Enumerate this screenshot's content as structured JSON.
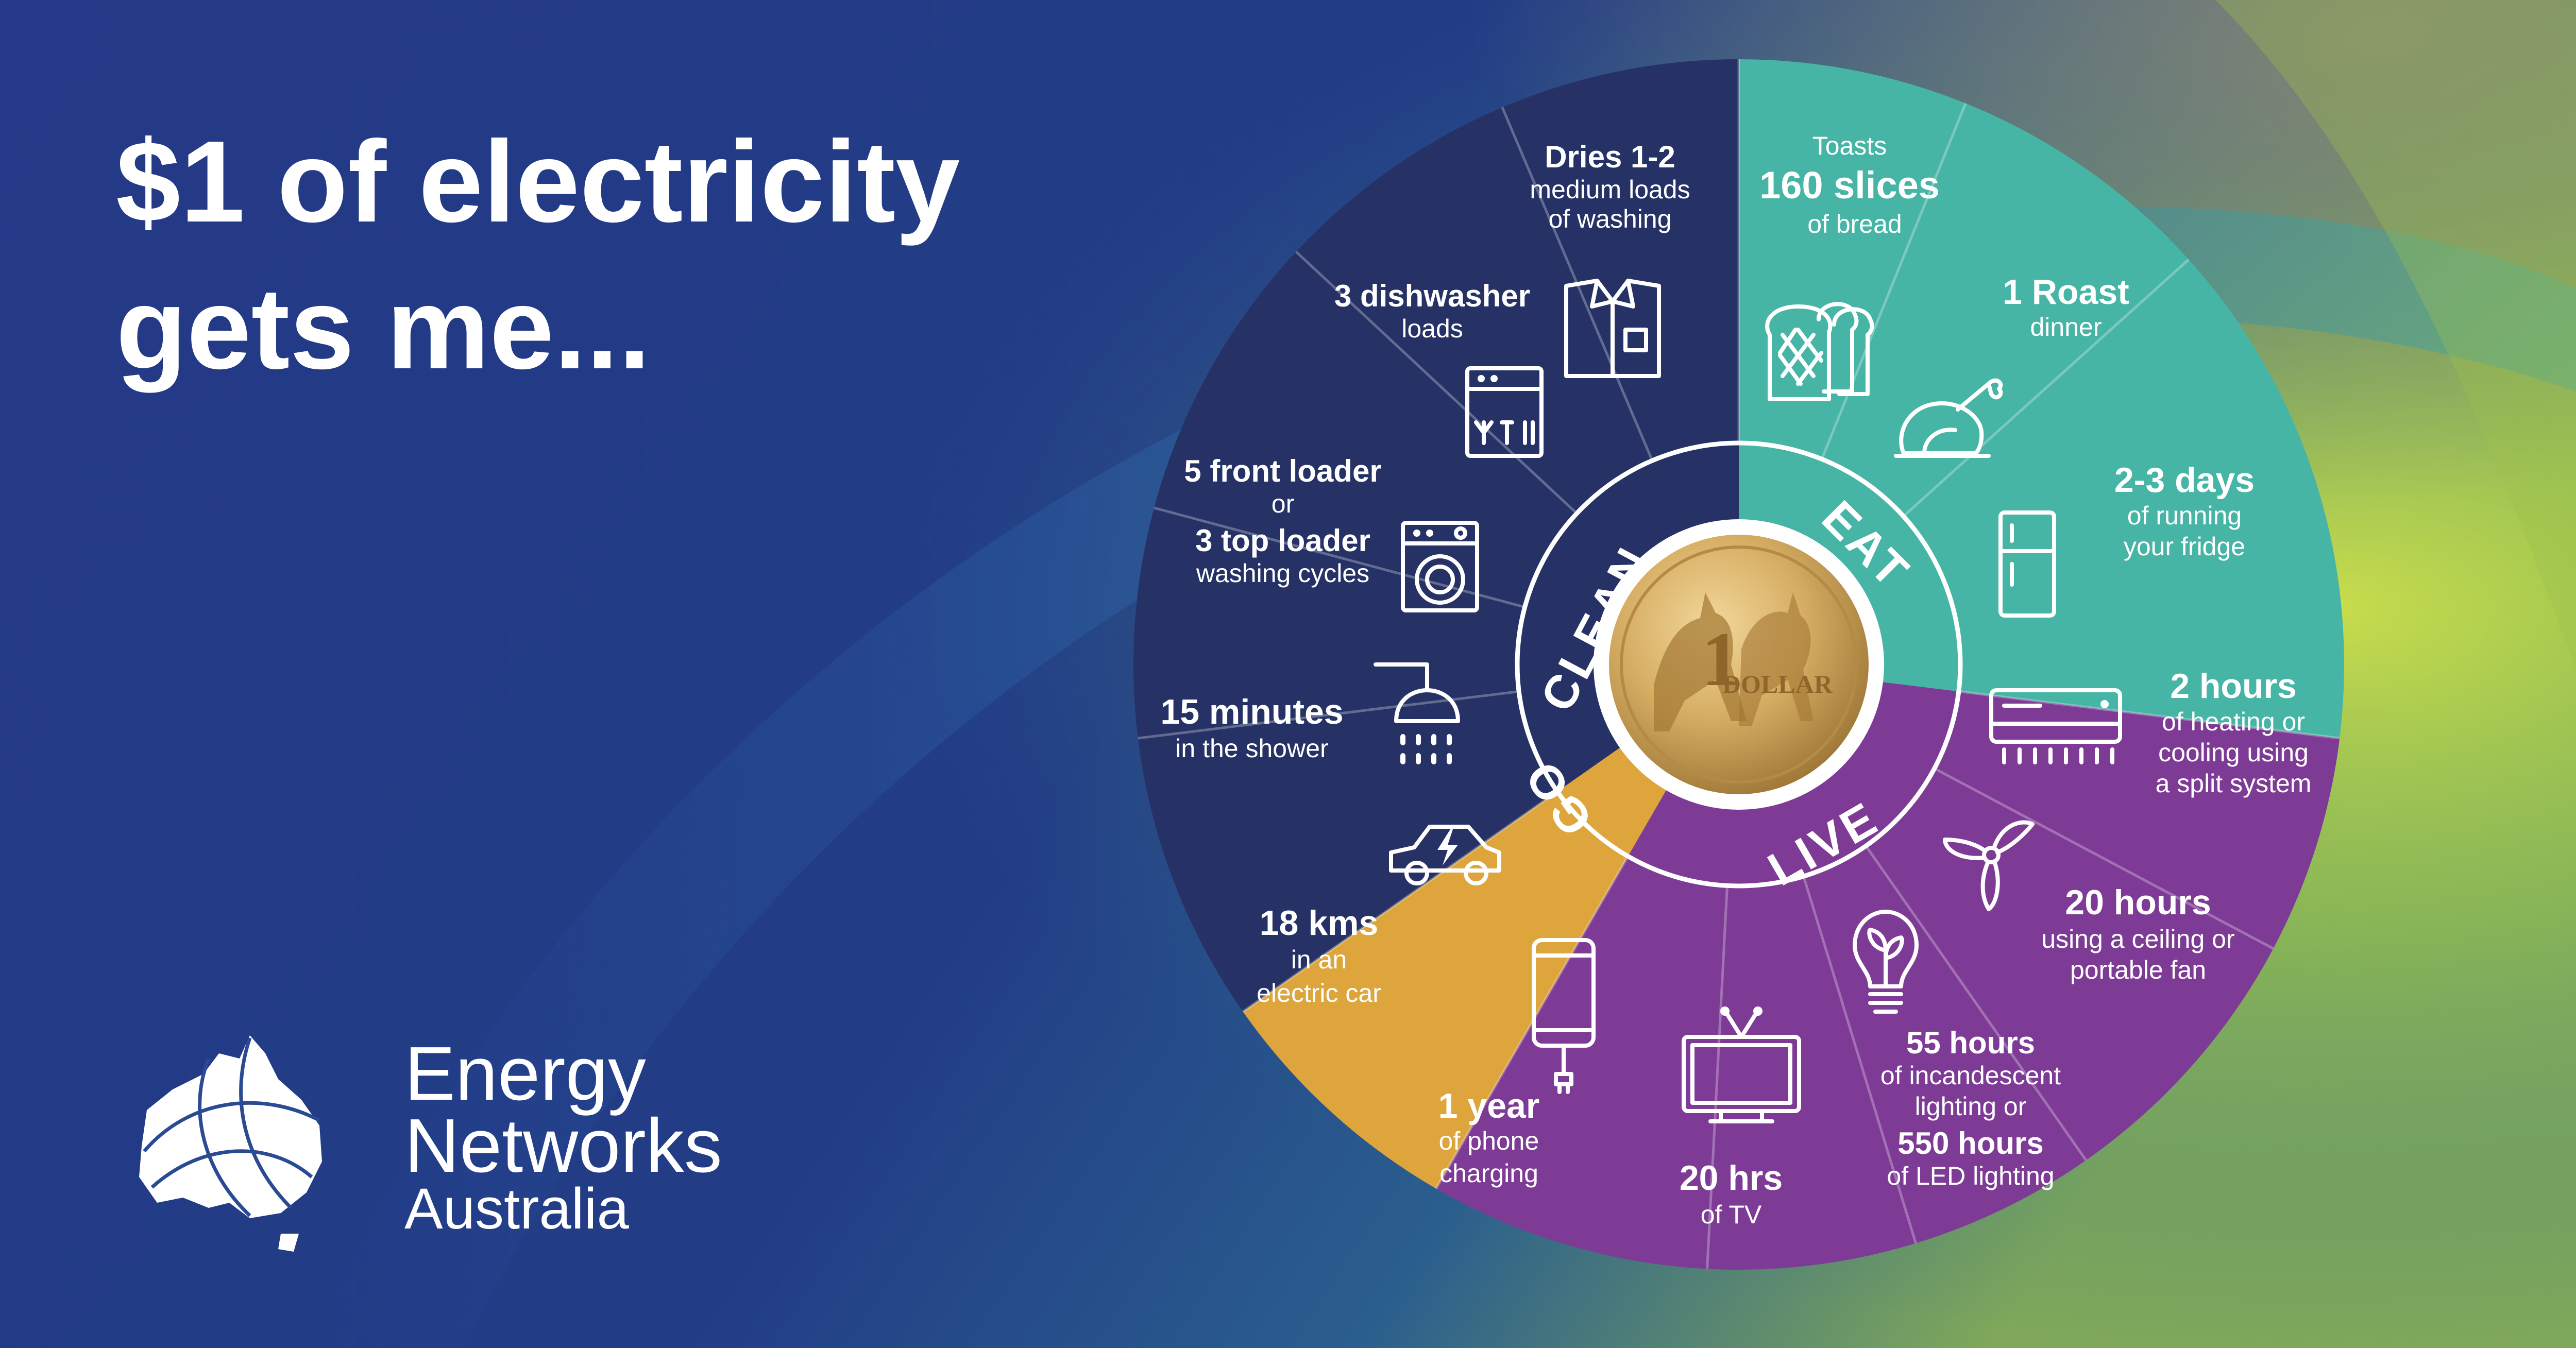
{
  "title": {
    "line1": "$1 of electricity",
    "line2": "gets me..."
  },
  "colors": {
    "clean": "#263266",
    "eat": "#47B5A6",
    "live": "#7E3B96",
    "go": "#DDA53B",
    "background": "#233A86"
  },
  "categories": {
    "clean": "CLEAN",
    "eat": "EAT",
    "live": "LIVE",
    "go": "GO"
  },
  "coin": {
    "label": "DOLLAR",
    "numeral": "1"
  },
  "segments": {
    "washing": {
      "l1": "Dries 1-2",
      "l2": "medium loads",
      "l3": "of washing",
      "icon": "shirt-icon"
    },
    "dishwasher": {
      "l1": "3 dishwasher",
      "l2": "loads",
      "icon": "dishwasher-icon"
    },
    "washer": {
      "l1": "5 front loader",
      "l2": "or",
      "l3": "3 top loader",
      "l4": "washing cycles",
      "icon": "washing-machine-icon"
    },
    "shower": {
      "l1": "15 minutes",
      "l2": "in the shower",
      "icon": "shower-icon"
    },
    "car": {
      "l1": "18 kms",
      "l2": "in an",
      "l3": "electric car",
      "icon": "electric-car-icon"
    },
    "phone": {
      "l1": "1 year",
      "l2": "of phone",
      "l3": "charging",
      "icon": "phone-icon"
    },
    "tv": {
      "l1": "20 hrs",
      "l2": "of TV",
      "icon": "tv-icon"
    },
    "lighting": {
      "l1": "55 hours",
      "l2": "of incandescent",
      "l3": "lighting or",
      "l4": "550 hours",
      "l5": "of LED lighting",
      "icon": "light-bulb-icon"
    },
    "fan": {
      "l1": "20 hours",
      "l2": "using a ceiling or",
      "l3": "portable fan",
      "icon": "fan-icon"
    },
    "aircon": {
      "l1": "2 hours",
      "l2": "of heating or",
      "l3": "cooling using",
      "l4": "a split system",
      "icon": "air-conditioner-icon"
    },
    "fridge": {
      "l1": "2-3 days",
      "l2": "of running",
      "l3": "your fridge",
      "icon": "fridge-icon"
    },
    "roast": {
      "l1": "1 Roast",
      "l2": "dinner",
      "icon": "roast-chicken-icon"
    },
    "toast": {
      "l1": "Toasts",
      "l2": "160 slices",
      "l3": "of bread",
      "icon": "bread-icon"
    }
  },
  "logo": {
    "l1": "Energy",
    "l2": "Networks",
    "l3": "Australia",
    "icon": "australia-map-icon"
  }
}
